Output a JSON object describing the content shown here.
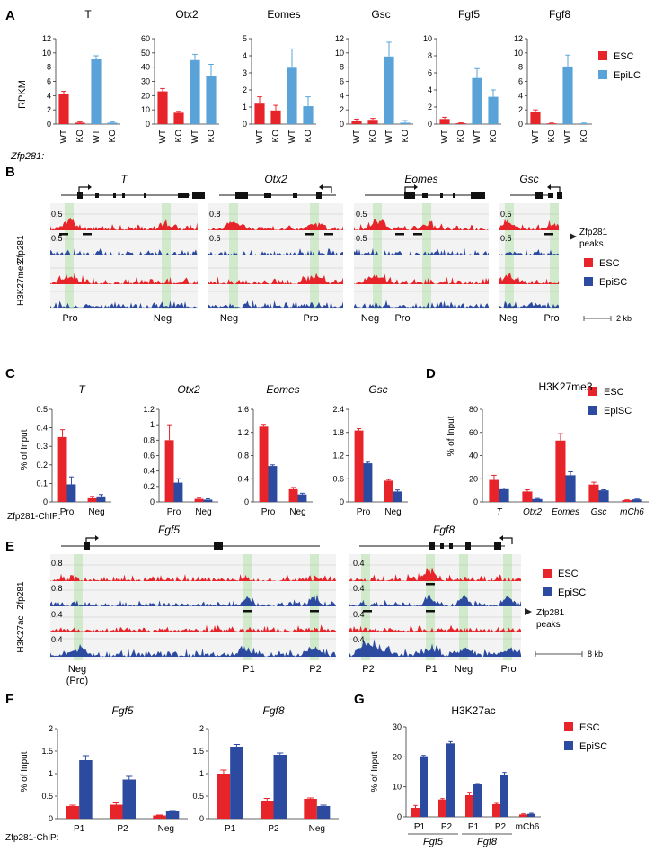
{
  "colors": {
    "esc": "#e8242b",
    "epi": "#5aa3d8",
    "episc": "#2b4aa0",
    "green": "#c9e8c3",
    "axis": "#333333"
  },
  "panel_labels": {
    "a": "A",
    "b": "B",
    "c": "C",
    "d": "D",
    "e": "E",
    "f": "F",
    "g": "G"
  },
  "legends": {
    "esc": "ESC",
    "epilc": "EpiLC",
    "episc": "EpiSC"
  },
  "panel_a": {
    "ylabel": "RPKM",
    "genotype_label": "Zfp281:"
  },
  "panel_b": {
    "genes": [
      "T",
      "Otx2",
      "Eomes",
      "Gsc"
    ],
    "track_labels": [
      "Zfp281",
      "H3K27me3"
    ],
    "scales": [
      "0.5",
      "0.5",
      "0.8",
      "0.5",
      "0.5",
      "0.5",
      "0.5",
      "0.5"
    ],
    "peaks_label_1": "Zfp281",
    "peaks_label_2": "peaks",
    "region_labels": [
      "Pro",
      "Neg",
      "Neg",
      "Pro",
      "Neg",
      "Pro",
      "Neg",
      "Pro"
    ],
    "scalebar": "2 kb"
  },
  "panel_e": {
    "genes": [
      "Fgf5",
      "Fgf8"
    ],
    "track_labels": [
      "Zfp281",
      "H3K27ac"
    ],
    "scales": [
      "0.8",
      "0.8",
      "0.4",
      "0.4"
    ],
    "peaks_label_1": "Zfp281",
    "peaks_label_2": "peaks",
    "region_labels": [
      "Neg",
      "(Pro)",
      "P1",
      "P2",
      "P2",
      "P1",
      "Neg",
      "Pro"
    ],
    "scalebar": "8 kb"
  },
  "chip_label": "Zfp281-ChIP:",
  "pct_input_label": "% of Input",
  "chart_data": [
    {
      "panel": "A",
      "type": "bar",
      "title": "T",
      "categories": [
        "WT",
        "KO",
        "WT",
        "KO"
      ],
      "values": [
        4.2,
        0.2,
        9.1,
        0.2
      ],
      "errors": [
        0.4,
        0.1,
        0.5,
        0.1
      ],
      "series_colors": [
        "esc",
        "esc",
        "epi",
        "epi"
      ],
      "ylim": [
        0,
        12
      ],
      "yticks": [
        "0",
        "2",
        "4",
        "6",
        "8",
        "10",
        "12"
      ]
    },
    {
      "panel": "A",
      "type": "bar",
      "title": "Otx2",
      "categories": [
        "WT",
        "KO",
        "WT",
        "KO"
      ],
      "values": [
        23,
        8,
        45,
        34
      ],
      "errors": [
        2,
        1,
        4,
        8
      ],
      "series_colors": [
        "esc",
        "esc",
        "epi",
        "epi"
      ],
      "ylim": [
        0,
        60
      ],
      "yticks": [
        "0",
        "10",
        "20",
        "30",
        "40",
        "50",
        "60"
      ]
    },
    {
      "panel": "A",
      "type": "bar",
      "title": "Eomes",
      "categories": [
        "WT",
        "KO",
        "WT",
        "KO"
      ],
      "values": [
        1.2,
        0.8,
        3.3,
        1.05
      ],
      "errors": [
        0.4,
        0.3,
        1.1,
        0.55
      ],
      "series_colors": [
        "esc",
        "esc",
        "epi",
        "epi"
      ],
      "ylim": [
        0,
        5
      ],
      "yticks": [
        "0",
        "1",
        "2",
        "3",
        "4",
        "5"
      ]
    },
    {
      "panel": "A",
      "type": "bar",
      "title": "Gsc",
      "categories": [
        "WT",
        "KO",
        "WT",
        "KO"
      ],
      "values": [
        0.5,
        0.6,
        9.5,
        0.2
      ],
      "errors": [
        0.2,
        0.2,
        2.0,
        0.3
      ],
      "series_colors": [
        "esc",
        "esc",
        "epi",
        "epi"
      ],
      "ylim": [
        0,
        12
      ],
      "yticks": [
        "0",
        "2",
        "4",
        "6",
        "8",
        "10",
        "12"
      ]
    },
    {
      "panel": "A",
      "type": "bar",
      "title": "Fgf5",
      "categories": [
        "WT",
        "KO",
        "WT",
        "KO"
      ],
      "values": [
        0.6,
        0.1,
        5.4,
        3.2
      ],
      "errors": [
        0.2,
        0.05,
        1.1,
        0.8
      ],
      "series_colors": [
        "esc",
        "esc",
        "epi",
        "epi"
      ],
      "ylim": [
        0,
        10
      ],
      "yticks": [
        "0",
        "2",
        "4",
        "6",
        "8",
        "10"
      ]
    },
    {
      "panel": "A",
      "type": "bar",
      "title": "Fgf8",
      "categories": [
        "WT",
        "KO",
        "WT",
        "KO"
      ],
      "values": [
        1.7,
        0.1,
        8.1,
        0.1
      ],
      "errors": [
        0.3,
        0.05,
        1.6,
        0.05
      ],
      "series_colors": [
        "esc",
        "esc",
        "epi",
        "epi"
      ],
      "ylim": [
        0,
        12
      ],
      "yticks": [
        "0",
        "2",
        "4",
        "6",
        "8",
        "10",
        "12"
      ]
    },
    {
      "panel": "C",
      "type": "bar",
      "title": "T",
      "categories": [
        "Pro",
        "Neg"
      ],
      "series": [
        {
          "name": "ESC",
          "values": [
            0.35,
            0.02
          ],
          "errors": [
            0.04,
            0.01
          ]
        },
        {
          "name": "EpiSC",
          "values": [
            0.095,
            0.03
          ],
          "errors": [
            0.04,
            0.01
          ]
        }
      ],
      "ylim": [
        0,
        0.5
      ],
      "yticks": [
        "0",
        "0.1",
        "0.2",
        "0.3",
        "0.4",
        "0.5"
      ]
    },
    {
      "panel": "C",
      "type": "bar",
      "title": "Otx2",
      "categories": [
        "Pro",
        "Neg"
      ],
      "series": [
        {
          "name": "ESC",
          "values": [
            0.8,
            0.04
          ],
          "errors": [
            0.2,
            0.01
          ]
        },
        {
          "name": "EpiSC",
          "values": [
            0.25,
            0.03
          ],
          "errors": [
            0.05,
            0.01
          ]
        }
      ],
      "ylim": [
        0,
        1.2
      ],
      "yticks": [
        "0",
        "0.2",
        "0.4",
        "0.6",
        "0.8",
        "1",
        "1.2"
      ]
    },
    {
      "panel": "C",
      "type": "bar",
      "title": "Eomes",
      "categories": [
        "Pro",
        "Neg"
      ],
      "series": [
        {
          "name": "ESC",
          "values": [
            1.3,
            0.22
          ],
          "errors": [
            0.04,
            0.03
          ]
        },
        {
          "name": "EpiSC",
          "values": [
            0.62,
            0.13
          ],
          "errors": [
            0.02,
            0.02
          ]
        }
      ],
      "ylim": [
        0,
        1.6
      ],
      "yticks": [
        "0",
        "0.4",
        "0.8",
        "1.2",
        "1.6"
      ]
    },
    {
      "panel": "C",
      "type": "bar",
      "title": "Gsc",
      "categories": [
        "Pro",
        "Neg"
      ],
      "series": [
        {
          "name": "ESC",
          "values": [
            1.85,
            0.55
          ],
          "errors": [
            0.05,
            0.03
          ]
        },
        {
          "name": "EpiSC",
          "values": [
            1.0,
            0.27
          ],
          "errors": [
            0.03,
            0.04
          ]
        }
      ],
      "ylim": [
        0,
        2.4
      ],
      "yticks": [
        "0",
        "0.6",
        "1.2",
        "1.8",
        "2.4"
      ]
    },
    {
      "panel": "D",
      "type": "bar",
      "title": "H3K27me3",
      "categories": [
        "T",
        "Otx2",
        "Eomes",
        "Gsc",
        "mCh6"
      ],
      "series": [
        {
          "name": "ESC",
          "values": [
            19,
            9,
            53,
            15,
            1.5
          ],
          "errors": [
            4,
            1.5,
            6,
            2,
            0.3
          ]
        },
        {
          "name": "EpiSC",
          "values": [
            11,
            2.5,
            23,
            10,
            2.2
          ],
          "errors": [
            1,
            0.5,
            3,
            0.5,
            0.3
          ]
        }
      ],
      "ylim": [
        0,
        80
      ],
      "yticks": [
        "0",
        "20",
        "40",
        "60",
        "80"
      ]
    },
    {
      "panel": "F",
      "type": "bar",
      "title": "Fgf5",
      "categories": [
        "P1",
        "P2",
        "Neg"
      ],
      "series": [
        {
          "name": "ESC",
          "values": [
            0.28,
            0.31,
            0.07
          ],
          "errors": [
            0.02,
            0.04,
            0.01
          ]
        },
        {
          "name": "EpiSC",
          "values": [
            1.3,
            0.87,
            0.17
          ],
          "errors": [
            0.1,
            0.07,
            0.01
          ]
        }
      ],
      "ylim": [
        0,
        2
      ],
      "yticks": [
        "0",
        "0.5",
        "1",
        "1.5",
        "2"
      ]
    },
    {
      "panel": "F",
      "type": "bar",
      "title": "Fgf8",
      "categories": [
        "P1",
        "P2",
        "Neg"
      ],
      "series": [
        {
          "name": "ESC",
          "values": [
            1.0,
            0.4,
            0.44
          ],
          "errors": [
            0.08,
            0.05,
            0.02
          ]
        },
        {
          "name": "EpiSC",
          "values": [
            1.6,
            1.42,
            0.28
          ],
          "errors": [
            0.05,
            0.04,
            0.02
          ]
        }
      ],
      "ylim": [
        0,
        2
      ],
      "yticks": [
        "0",
        "0.5",
        "1",
        "1.5",
        "2"
      ]
    },
    {
      "panel": "G",
      "type": "bar",
      "title": "H3K27ac",
      "categories": [
        "P1",
        "P2",
        "P1",
        "P2",
        "mCh6"
      ],
      "group_labels": [
        "Fgf5",
        "Fgf8"
      ],
      "series": [
        {
          "name": "ESC",
          "values": [
            3,
            5.8,
            7.2,
            4.2,
            0.8
          ],
          "errors": [
            0.8,
            0.3,
            1.0,
            0.3,
            0.2
          ]
        },
        {
          "name": "EpiSC",
          "values": [
            20.2,
            24.5,
            10.8,
            14,
            1.0
          ],
          "errors": [
            0.3,
            0.6,
            0.3,
            0.8,
            0.2
          ]
        }
      ],
      "ylim": [
        0,
        30
      ],
      "yticks": [
        "0",
        "10",
        "20",
        "30"
      ]
    }
  ]
}
